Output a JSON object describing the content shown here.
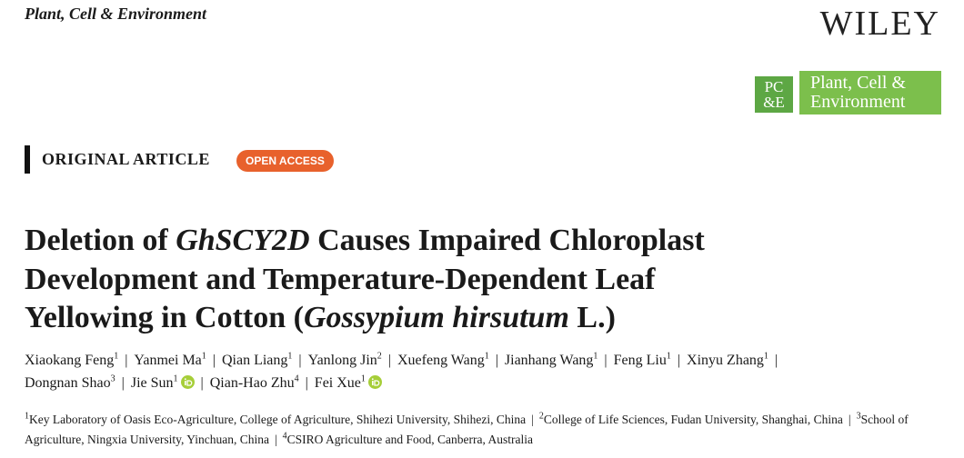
{
  "header": {
    "journal": "Plant, Cell & Environment",
    "publisher": "WILEY"
  },
  "logo": {
    "mark_top": "PC",
    "mark_bottom": "&E",
    "name_lines": [
      "Plant, Cell &",
      "Environment"
    ]
  },
  "article_type": "ORIGINAL ARTICLE",
  "access_badge": "OPEN ACCESS",
  "title": {
    "lines": [
      [
        {
          "text": "Deletion of "
        },
        {
          "text": "GhSCY2D",
          "italic": true
        },
        {
          "text": " Causes Impaired Chloroplast"
        }
      ],
      [
        {
          "text": "Development and Temperature-Dependent Leaf"
        }
      ],
      [
        {
          "text": "Yellowing in Cotton ("
        },
        {
          "text": "Gossypium hirsutum",
          "italic": true
        },
        {
          "text": " L.)"
        }
      ]
    ]
  },
  "separator": "|",
  "authors": {
    "lines": [
      [
        {
          "name": "Xiaokang Feng",
          "affiliation": 1
        },
        {
          "name": "Yanmei Ma",
          "affiliation": 1
        },
        {
          "name": "Qian Liang",
          "affiliation": 1
        },
        {
          "name": "Yanlong Jin",
          "affiliation": 2
        },
        {
          "name": "Xuefeng Wang",
          "affiliation": 1
        },
        {
          "name": "Jianhang Wang",
          "affiliation": 1
        },
        {
          "name": "Feng Liu",
          "affiliation": 1
        },
        {
          "name": "Xinyu Zhang",
          "affiliation": 1
        }
      ],
      [
        {
          "name": "Dongnan Shao",
          "affiliation": 3
        },
        {
          "name": "Jie Sun",
          "affiliation": 1,
          "orcid": true
        },
        {
          "name": "Qian-Hao Zhu",
          "affiliation": 4
        },
        {
          "name": "Fei Xue",
          "affiliation": 1,
          "orcid": true
        }
      ]
    ]
  },
  "affiliations": [
    {
      "number": 1,
      "text": "Key Laboratory of Oasis Eco-Agriculture, College of Agriculture, Shihezi University, Shihezi, China"
    },
    {
      "number": 2,
      "text": "College of Life Sciences, Fudan University, Shanghai, China"
    },
    {
      "number": 3,
      "text": "School of Agriculture, Ningxia University, Yinchuan, China"
    },
    {
      "number": 4,
      "text": "CSIRO Agriculture and Food, Canberra, Australia"
    }
  ]
}
